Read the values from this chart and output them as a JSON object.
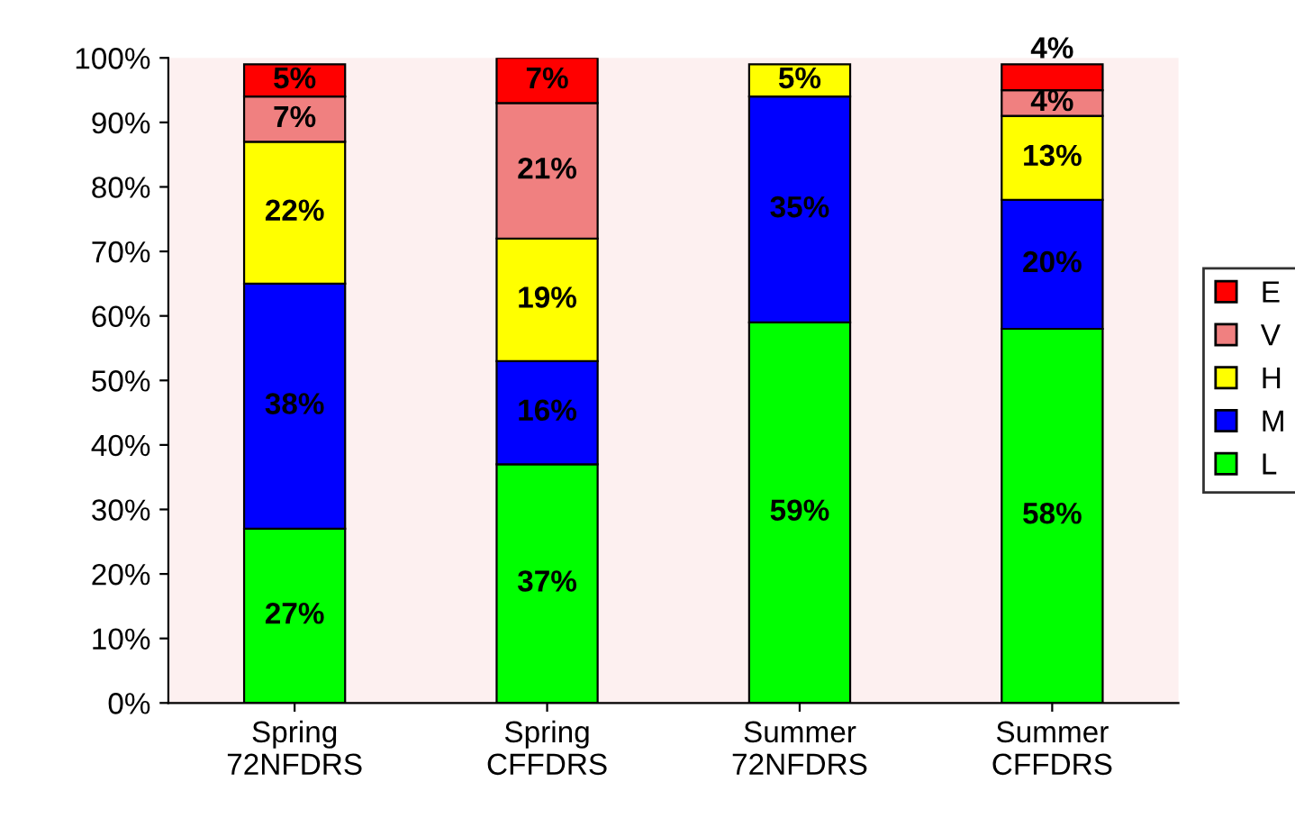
{
  "chart_data": {
    "type": "bar",
    "stacked": true,
    "categories": [
      "Spring\n72NFDRS",
      "Spring\nCFFDRS",
      "Summer\n72NFDRS",
      "Summer\nCFFDRS"
    ],
    "series": [
      {
        "name": "L",
        "color": "#00ff00",
        "values": [
          27,
          37,
          59,
          58
        ],
        "value_labels": [
          "27%",
          "37%",
          "59%",
          "58%"
        ]
      },
      {
        "name": "M",
        "color": "#0000ff",
        "values": [
          38,
          16,
          35,
          20
        ],
        "value_labels": [
          "38%",
          "16%",
          "35%",
          "20%"
        ]
      },
      {
        "name": "H",
        "color": "#ffff00",
        "values": [
          22,
          19,
          5,
          13
        ],
        "value_labels": [
          "22%",
          "19%",
          "5%",
          "13%"
        ]
      },
      {
        "name": "V",
        "color": "#f08080",
        "values": [
          7,
          21,
          null,
          4
        ],
        "value_labels": [
          "7%",
          "21%",
          null,
          "4%"
        ]
      },
      {
        "name": "E",
        "color": "#ff0000",
        "values": [
          5,
          7,
          null,
          4
        ],
        "value_labels": [
          "5%",
          "7%",
          null,
          "4%"
        ]
      }
    ],
    "ylim": [
      0,
      100
    ],
    "yticks": [
      {
        "value": 0,
        "label": "0%"
      },
      {
        "value": 10,
        "label": "10%"
      },
      {
        "value": 20,
        "label": "20%"
      },
      {
        "value": 30,
        "label": "30%"
      },
      {
        "value": 40,
        "label": "40%"
      },
      {
        "value": 50,
        "label": "50%"
      },
      {
        "value": 60,
        "label": "60%"
      },
      {
        "value": 70,
        "label": "70%"
      },
      {
        "value": 80,
        "label": "80%"
      },
      {
        "value": 90,
        "label": "90%"
      },
      {
        "value": 100,
        "label": "100%"
      }
    ],
    "legend": "right",
    "grid": false
  }
}
